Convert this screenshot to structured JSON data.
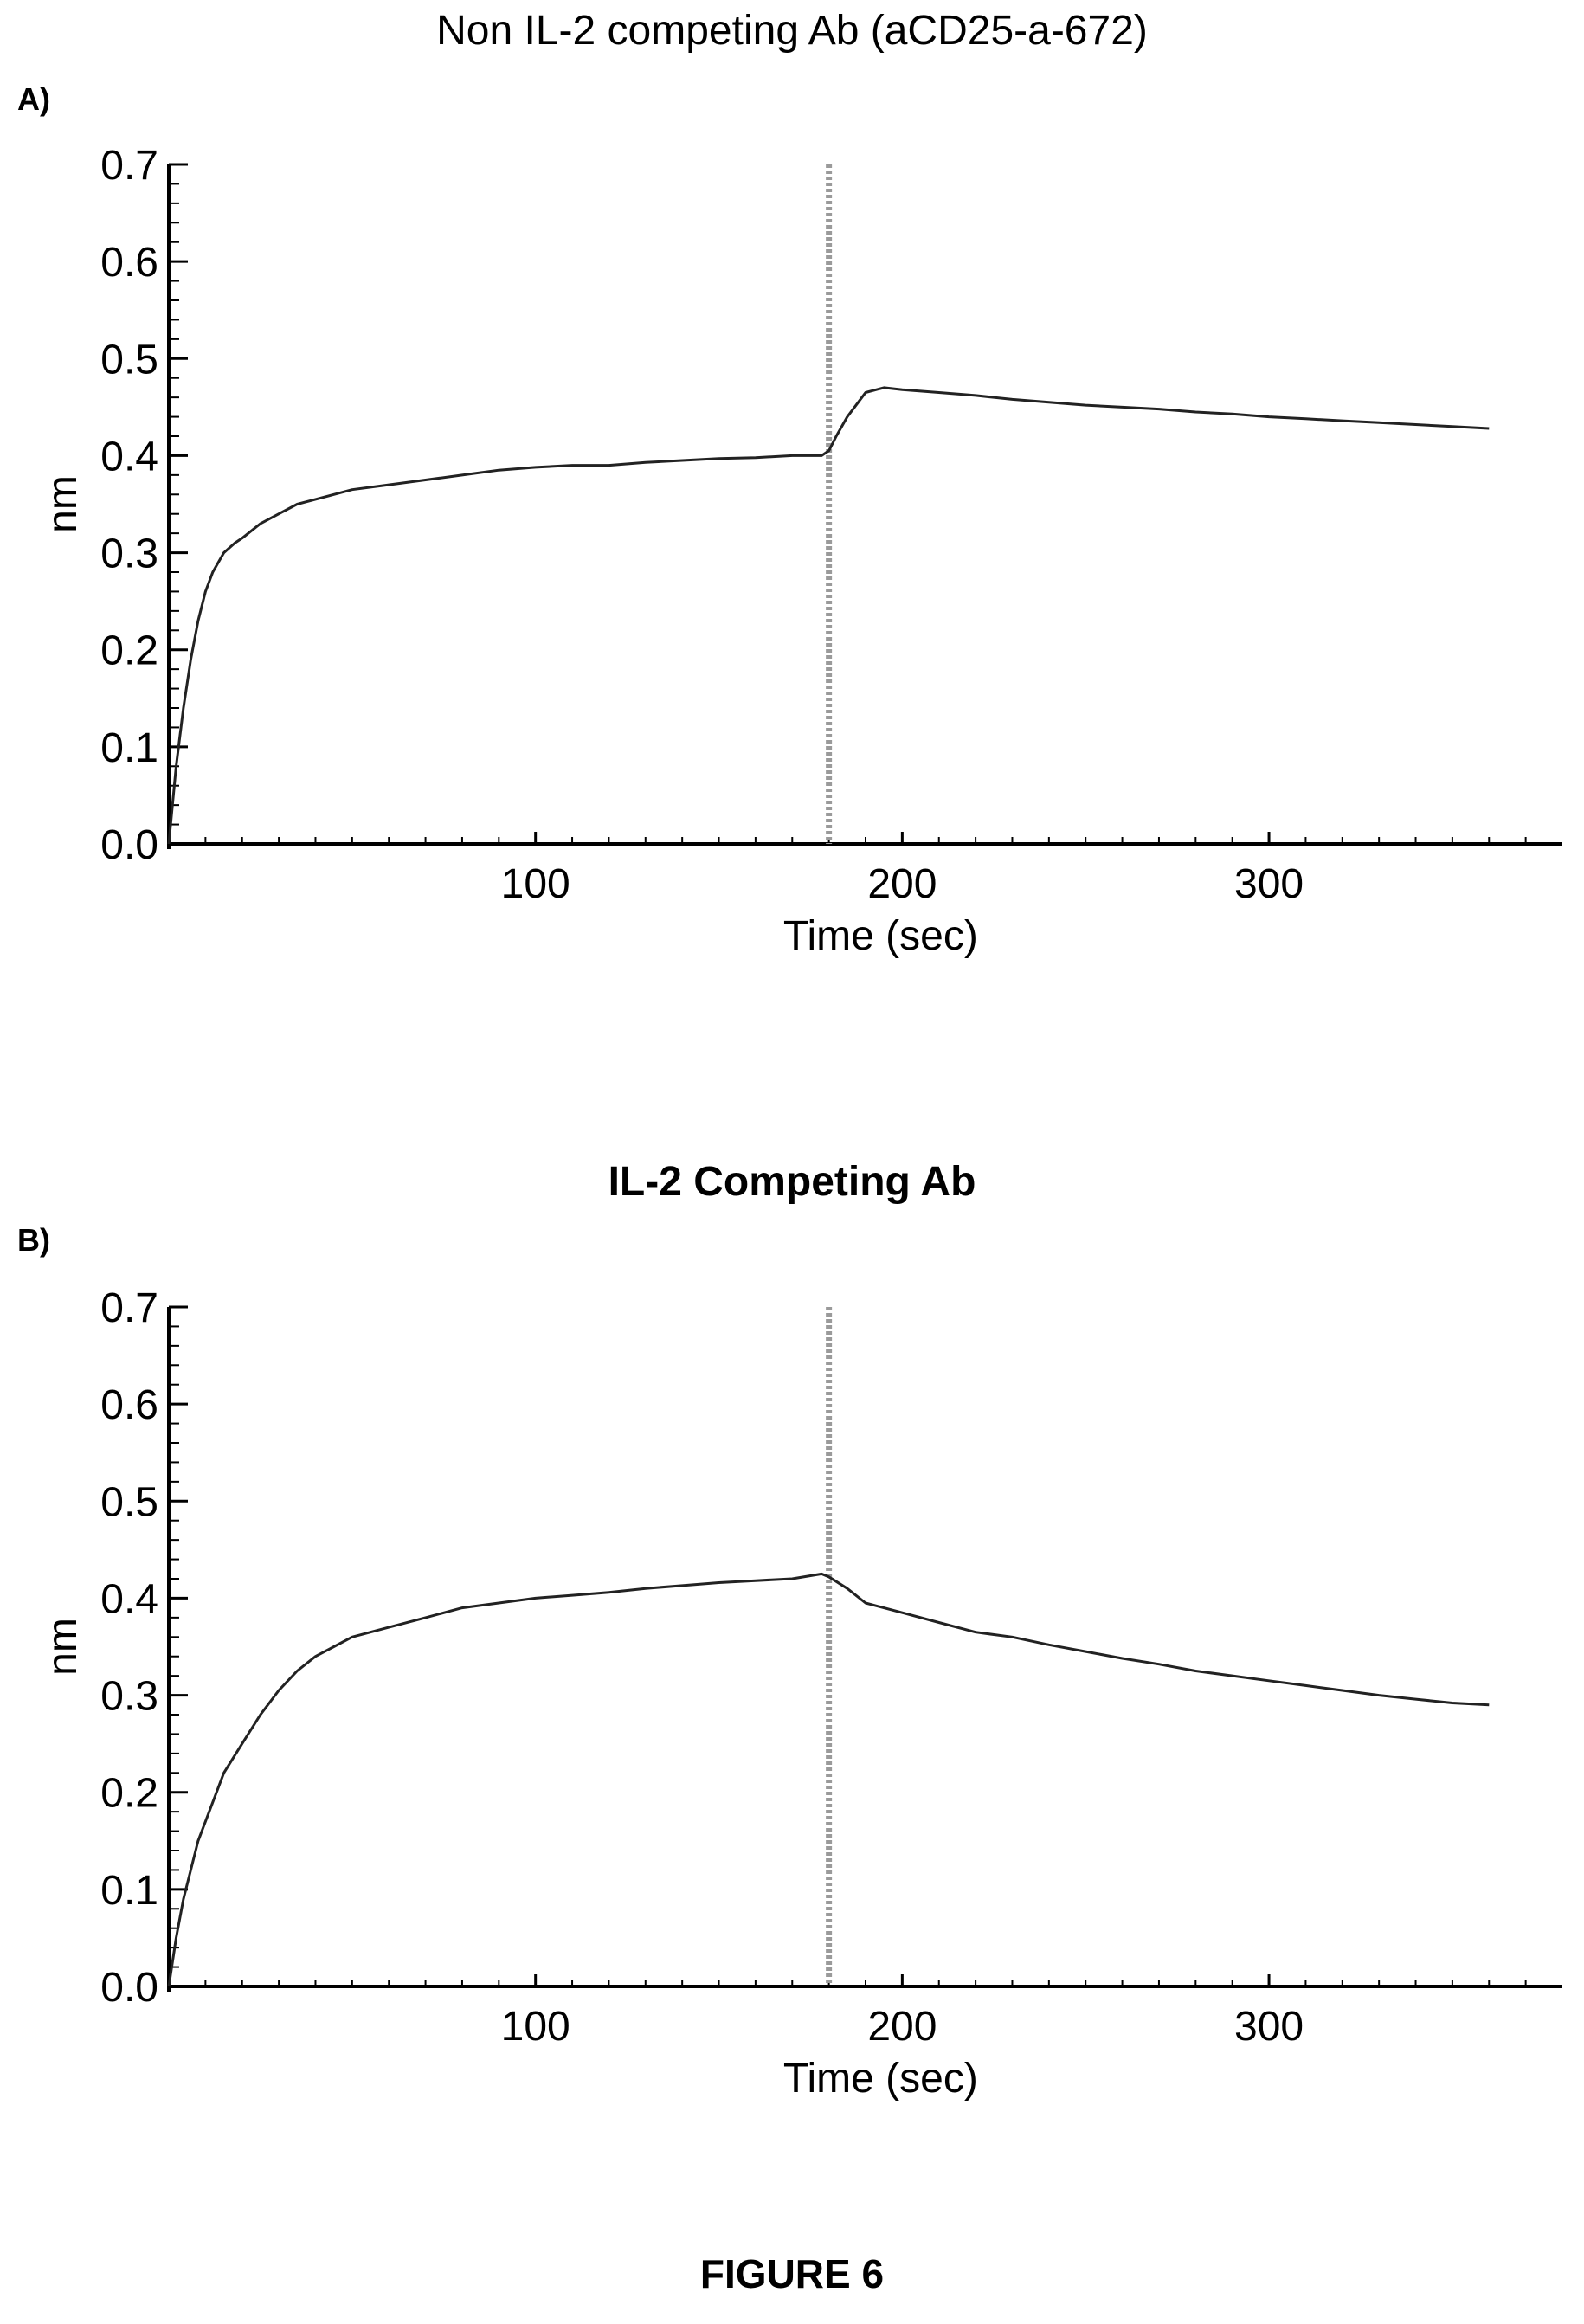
{
  "panels": [
    {
      "label": "A)",
      "title": "Non IL-2 competing Ab (aCD25-a-672)"
    },
    {
      "label": "B)",
      "title": "IL-2 Competing Ab"
    }
  ],
  "figure_caption": "FIGURE 6",
  "chart_data": [
    {
      "type": "line",
      "title": "Non IL-2 competing Ab (aCD25-a-672)",
      "xlabel": "Time (sec)",
      "ylabel": "nm",
      "xlim": [
        0,
        380
      ],
      "ylim": [
        0,
        0.7
      ],
      "xticks": [
        100,
        200,
        300
      ],
      "xtick_labels": [
        "100",
        "200",
        "300"
      ],
      "yticks": [
        0.0,
        0.1,
        0.2,
        0.3,
        0.4,
        0.5,
        0.6,
        0.7
      ],
      "ytick_labels": [
        "0.0",
        "0.1",
        "0.2",
        "0.3",
        "0.4",
        "0.5",
        "0.6",
        "0.7"
      ],
      "marker_line_x": 180,
      "grid": false,
      "series": [
        {
          "color": "#222222",
          "x": [
            0,
            2,
            4,
            6,
            8,
            10,
            12,
            15,
            18,
            20,
            25,
            30,
            35,
            40,
            45,
            50,
            60,
            70,
            80,
            90,
            100,
            110,
            120,
            130,
            140,
            150,
            160,
            170,
            178,
            180,
            182,
            185,
            188,
            190,
            195,
            200,
            210,
            220,
            230,
            240,
            250,
            260,
            270,
            280,
            290,
            300,
            310,
            320,
            330,
            340,
            350,
            360
          ],
          "y": [
            0.0,
            0.08,
            0.14,
            0.19,
            0.23,
            0.26,
            0.28,
            0.3,
            0.31,
            0.315,
            0.33,
            0.34,
            0.35,
            0.355,
            0.36,
            0.365,
            0.37,
            0.375,
            0.38,
            0.385,
            0.388,
            0.39,
            0.39,
            0.393,
            0.395,
            0.397,
            0.398,
            0.4,
            0.4,
            0.405,
            0.42,
            0.44,
            0.455,
            0.465,
            0.47,
            0.468,
            0.465,
            0.462,
            0.458,
            0.455,
            0.452,
            0.45,
            0.448,
            0.445,
            0.443,
            0.44,
            0.438,
            0.436,
            0.434,
            0.432,
            0.43,
            0.428
          ]
        }
      ]
    },
    {
      "type": "line",
      "title": "IL-2 Competing Ab",
      "xlabel": "Time (sec)",
      "ylabel": "nm",
      "xlim": [
        0,
        380
      ],
      "ylim": [
        0,
        0.7
      ],
      "xticks": [
        100,
        200,
        300
      ],
      "xtick_labels": [
        "100",
        "200",
        "300"
      ],
      "yticks": [
        0.0,
        0.1,
        0.2,
        0.3,
        0.4,
        0.5,
        0.6,
        0.7
      ],
      "ytick_labels": [
        "0.0",
        "0.1",
        "0.2",
        "0.3",
        "0.4",
        "0.5",
        "0.6",
        "0.7"
      ],
      "marker_line_x": 180,
      "grid": false,
      "series": [
        {
          "color": "#222222",
          "x": [
            0,
            2,
            4,
            6,
            8,
            10,
            15,
            20,
            25,
            30,
            35,
            40,
            45,
            50,
            60,
            70,
            80,
            90,
            100,
            110,
            120,
            130,
            140,
            150,
            160,
            170,
            178,
            180,
            185,
            190,
            200,
            210,
            220,
            230,
            240,
            250,
            260,
            270,
            280,
            290,
            300,
            310,
            320,
            330,
            340,
            350,
            360
          ],
          "y": [
            0.0,
            0.05,
            0.09,
            0.12,
            0.15,
            0.17,
            0.22,
            0.25,
            0.28,
            0.305,
            0.325,
            0.34,
            0.35,
            0.36,
            0.37,
            0.38,
            0.39,
            0.395,
            0.4,
            0.403,
            0.406,
            0.41,
            0.413,
            0.416,
            0.418,
            0.42,
            0.425,
            0.422,
            0.41,
            0.395,
            0.385,
            0.375,
            0.365,
            0.36,
            0.352,
            0.345,
            0.338,
            0.332,
            0.325,
            0.32,
            0.315,
            0.31,
            0.305,
            0.3,
            0.296,
            0.292,
            0.29
          ]
        }
      ]
    }
  ]
}
